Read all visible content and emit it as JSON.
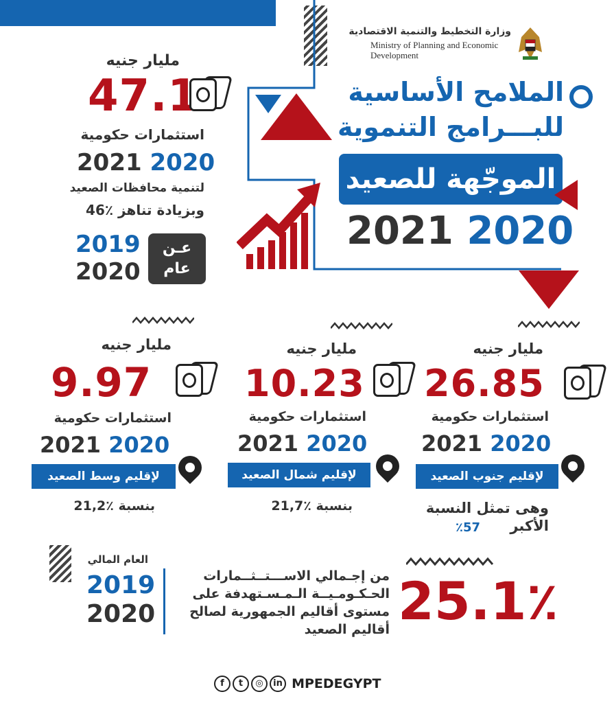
{
  "ministry": {
    "name_ar": "وزارة التخطيط والتنمية الاقتصادية",
    "name_en_line1": "Ministry of Planning and Economic",
    "name_en_line2": "Development"
  },
  "title": {
    "line1": "الملامح الأساسية",
    "line2": "للبـــرامج التنموية",
    "banner": "الموجّهة للصعيد",
    "year_a": "2020",
    "year_b": "2021"
  },
  "top_stat": {
    "unit": "مليار جنيه",
    "value": "47.1",
    "label": "استثمارات حكومية",
    "year_a": "2020",
    "year_b": "2021",
    "desc1": "لتنمية محافظات الصعيد",
    "desc2": "وبزيادة تناهز ٪46",
    "badge_line1": "عـن",
    "badge_line2": "عام",
    "compare_year_a": "2019",
    "compare_year_b": "2020"
  },
  "regions": [
    {
      "unit": "مليار جنيه",
      "value": "26.85",
      "label": "استثمارات حكومية",
      "year_a": "2020",
      "year_b": "2021",
      "region": "لإقليم جنوب الصعيد",
      "note1": "وهى تمثل النسبة",
      "note2": "الأكبر",
      "note3": "٪57"
    },
    {
      "unit": "مليار جنيه",
      "value": "10.23",
      "label": "استثمارات حكومية",
      "year_a": "2020",
      "year_b": "2021",
      "region": "لإقليم شمال الصعيد",
      "share": "بنسبة ٪21,7"
    },
    {
      "unit": "مليار جنيه",
      "value": "9.97",
      "label": "استثمارات حكومية",
      "year_a": "2020",
      "year_b": "2021",
      "region": "لإقليم وسط الصعيد",
      "share": "بنسبة ٪21,2"
    }
  ],
  "bottom": {
    "value": "25.1٪",
    "text1": "من إجـمالي الاســـتــثــمارات",
    "text2": "الحـكـومـيــة الـمـسـتهدفة على",
    "text3": "مستوى أقاليم الجمهورية لصالح",
    "text4": "أقاليم الصعيد",
    "fy_label": "العام المالي",
    "fy_year_a": "2019",
    "fy_year_b": "2020"
  },
  "footer": {
    "handle": "MPEDEGYPT",
    "icons": [
      "facebook-icon",
      "twitter-icon",
      "instagram-icon",
      "linkedin-icon"
    ]
  },
  "colors": {
    "red": "#b5121b",
    "blue": "#1565b0",
    "dark": "#333333"
  }
}
